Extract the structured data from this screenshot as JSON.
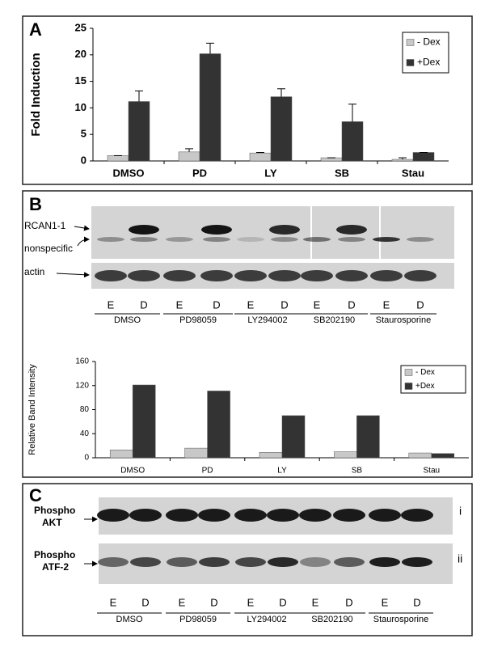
{
  "panel_labels": [
    "A",
    "B",
    "C"
  ],
  "chart_data": [
    {
      "type": "bar",
      "ylabel": "Fold Induction",
      "categories": [
        "DMSO",
        "PD",
        "LY",
        "SB",
        "Stau"
      ],
      "series": [
        {
          "name": "- Dex",
          "color": "#c8c8c8",
          "values": [
            1,
            1.7,
            1.5,
            0.6,
            0.3
          ],
          "errors": [
            0,
            0.6,
            0.1,
            0,
            0.3
          ]
        },
        {
          "name": "+Dex",
          "color": "#333333",
          "values": [
            11.2,
            20.2,
            12.1,
            7.4,
            1.6
          ],
          "errors": [
            2,
            2,
            1.5,
            3.3,
            0
          ]
        }
      ],
      "ylim": [
        0,
        25
      ],
      "yticks": [
        0,
        5,
        10,
        15,
        20,
        25
      ],
      "legend": "upper right"
    },
    {
      "type": "bar",
      "ylabel": "Relative Band Intensity",
      "categories": [
        "DMSO",
        "PD",
        "LY",
        "SB",
        "Stau"
      ],
      "series": [
        {
          "name": "- Dex",
          "color": "#c8c8c8",
          "values": [
            13,
            16,
            9,
            10,
            8
          ]
        },
        {
          "name": "+Dex",
          "color": "#333333",
          "values": [
            121,
            111,
            70,
            70,
            7
          ]
        }
      ],
      "ylim": [
        0,
        160
      ],
      "yticks": [
        0,
        40,
        80,
        120,
        160
      ],
      "legend": "upper right"
    }
  ],
  "blots": {
    "B": {
      "bands": [
        "RCAN1-1",
        "nonspecific"
      ],
      "loading": "actin",
      "lanes": [
        "E",
        "D",
        "E",
        "D",
        "E",
        "D",
        "E",
        "D",
        "E",
        "D"
      ],
      "groups": [
        "DMSO",
        "PD98059",
        "LY294002",
        "SB202190",
        "Staurosporine"
      ]
    },
    "C": {
      "rows": [
        {
          "label": [
            "Phospho",
            "AKT"
          ],
          "index": "i"
        },
        {
          "label": [
            "Phospho",
            "ATF-2"
          ],
          "index": "ii"
        }
      ],
      "lanes": [
        "E",
        "D",
        "E",
        "D",
        "E",
        "D",
        "E",
        "D",
        "E",
        "D"
      ],
      "groups": [
        "DMSO",
        "PD98059",
        "LY294002",
        "SB202190",
        "Staurosporine"
      ]
    }
  }
}
